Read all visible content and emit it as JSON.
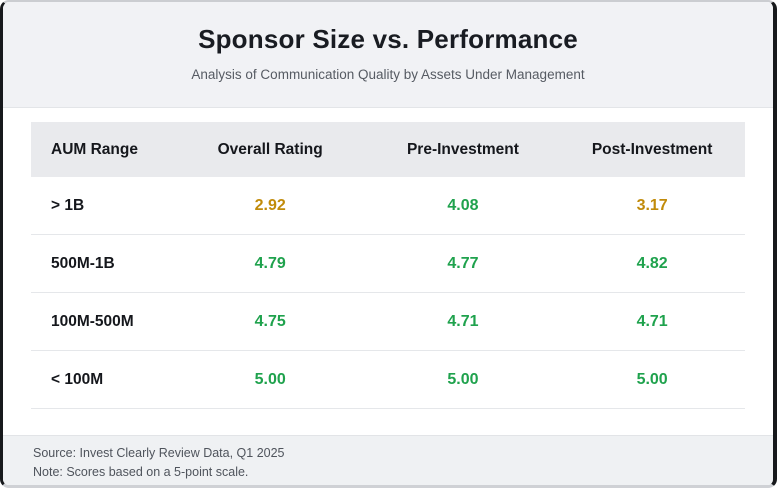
{
  "header": {
    "title": "Sponsor Size vs. Performance",
    "subtitle": "Analysis of Communication Quality by Assets Under Management"
  },
  "table": {
    "columns": [
      "AUM Range",
      "Overall Rating",
      "Pre-Investment",
      "Post-Investment"
    ],
    "rows": [
      {
        "label": "> 1B",
        "cells": [
          {
            "text": "2.92",
            "tone": "warning"
          },
          {
            "text": "4.08",
            "tone": "good"
          },
          {
            "text": "3.17",
            "tone": "warning"
          }
        ]
      },
      {
        "label": "500M-1B",
        "cells": [
          {
            "text": "4.79",
            "tone": "good"
          },
          {
            "text": "4.77",
            "tone": "good"
          },
          {
            "text": "4.82",
            "tone": "good"
          }
        ]
      },
      {
        "label": "100M-500M",
        "cells": [
          {
            "text": "4.75",
            "tone": "good"
          },
          {
            "text": "4.71",
            "tone": "good"
          },
          {
            "text": "4.71",
            "tone": "good"
          }
        ]
      },
      {
        "label": "< 100M",
        "cells": [
          {
            "text": "5.00",
            "tone": "good"
          },
          {
            "text": "5.00",
            "tone": "good"
          },
          {
            "text": "5.00",
            "tone": "good"
          }
        ]
      }
    ]
  },
  "footer": {
    "source": "Source: Invest Clearly Review Data, Q1 2025",
    "note": "Note: Scores based on a 5-point scale."
  },
  "colors": {
    "good": "#1fa24d",
    "warning": "#c18b0a"
  },
  "chart_data": {
    "type": "table",
    "title": "Sponsor Size vs. Performance",
    "subtitle": "Analysis of Communication Quality by Assets Under Management",
    "columns": [
      "AUM Range",
      "Overall Rating",
      "Pre-Investment",
      "Post-Investment"
    ],
    "rows": [
      [
        "> 1B",
        2.92,
        4.08,
        3.17
      ],
      [
        "500M-1B",
        4.79,
        4.77,
        4.82
      ],
      [
        "100M-500M",
        4.75,
        4.71,
        4.71
      ],
      [
        "< 100M",
        5.0,
        5.0,
        5.0
      ]
    ],
    "value_range": [
      0,
      5
    ],
    "notes": [
      "Source: Invest Clearly Review Data, Q1 2025",
      "Note: Scores based on a 5-point scale."
    ]
  }
}
